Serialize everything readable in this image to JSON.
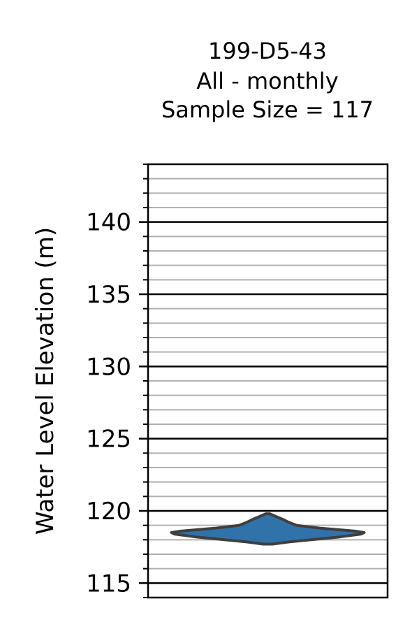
{
  "chart_data": {
    "type": "violin",
    "title_lines": [
      "199-D5-43",
      "All - monthly",
      "Sample Size = 117"
    ],
    "ylabel": "Water Level Elevation (m)",
    "xlabel": "",
    "ylim": [
      114,
      144
    ],
    "major_ticks": [
      115,
      120,
      125,
      130,
      135,
      140
    ],
    "minor_tick_step": 1,
    "grid": "major and minor horizontal",
    "series": [
      {
        "sample_size": 117,
        "min": 117.7,
        "max": 119.8,
        "median": 118.5,
        "color": "#2f73aa",
        "outline_color": "#3f3f3f",
        "profile": [
          [
            117.7,
            0.05
          ],
          [
            117.85,
            0.22
          ],
          [
            118.0,
            0.45
          ],
          [
            118.2,
            0.75
          ],
          [
            118.4,
            0.97
          ],
          [
            118.5,
            1.0
          ],
          [
            118.6,
            0.9
          ],
          [
            118.8,
            0.55
          ],
          [
            119.0,
            0.3
          ],
          [
            119.2,
            0.22
          ],
          [
            119.4,
            0.16
          ],
          [
            119.6,
            0.09
          ],
          [
            119.8,
            0.02
          ]
        ]
      }
    ],
    "colors": {
      "major_grid": "#000000",
      "minor_grid": "#b0b0b0",
      "frame": "#000000"
    }
  }
}
